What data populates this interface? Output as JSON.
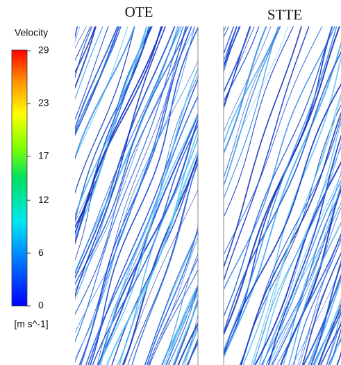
{
  "colorbar": {
    "title": "Velocity",
    "unit": "[m s^-1]",
    "range": [
      0,
      29
    ],
    "ticks": [
      29,
      23,
      17,
      12,
      6,
      0
    ]
  },
  "panels": [
    {
      "title": "OTE"
    },
    {
      "title": "STTE"
    }
  ]
}
